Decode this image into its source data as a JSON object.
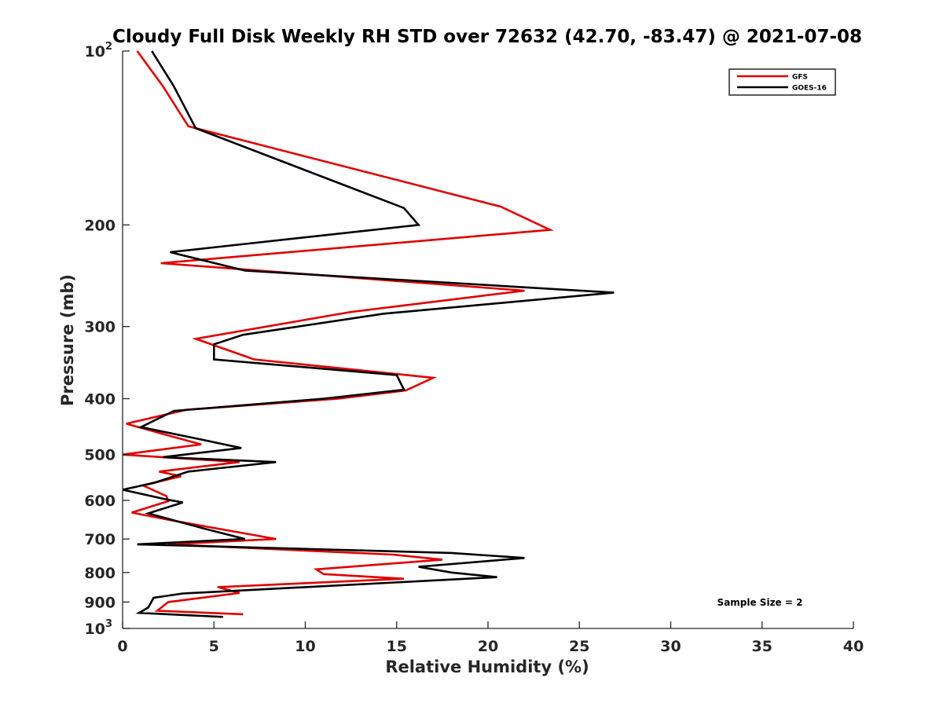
{
  "chart_data": {
    "type": "line",
    "title": "Cloudy Full Disk Weekly RH STD over 72632 (42.70, -83.47) @ 2021-07-08",
    "xlabel": "Relative Humidity (%)",
    "ylabel": "Pressure (mb)",
    "xlim": [
      0,
      40
    ],
    "ylim": [
      100,
      1000
    ],
    "y_scale": "log",
    "y_reversed": true,
    "x_ticks": [
      "0",
      "5",
      "10",
      "15",
      "20",
      "25",
      "30",
      "35",
      "40"
    ],
    "y_ticks": [
      {
        "value": 100,
        "base": "10",
        "exp": "2"
      },
      {
        "value": 200,
        "label": "200"
      },
      {
        "value": 300,
        "label": "300"
      },
      {
        "value": 400,
        "label": "400"
      },
      {
        "value": 500,
        "label": "500"
      },
      {
        "value": 600,
        "label": "600"
      },
      {
        "value": 700,
        "label": "700"
      },
      {
        "value": 800,
        "label": "800"
      },
      {
        "value": 900,
        "label": "900"
      },
      {
        "value": 1000,
        "base": "10",
        "exp": "3"
      }
    ],
    "legend_position": "top-right",
    "annotation": "Sample Size = 2",
    "series": [
      {
        "name": "GFS",
        "color": "#e00000",
        "points": [
          [
            0.8,
            100
          ],
          [
            2.2,
            115
          ],
          [
            3.6,
            135
          ],
          [
            20.7,
            186
          ],
          [
            23.4,
            204
          ],
          [
            2.1,
            233
          ],
          [
            22.0,
            260
          ],
          [
            12.5,
            283
          ],
          [
            4.0,
            315
          ],
          [
            7.2,
            342
          ],
          [
            17.0,
            368
          ],
          [
            15.5,
            387
          ],
          [
            11.8,
            400
          ],
          [
            3.5,
            418
          ],
          [
            0.2,
            442
          ],
          [
            2.7,
            465
          ],
          [
            4.3,
            480
          ],
          [
            0.0,
            500
          ],
          [
            6.4,
            515
          ],
          [
            2.0,
            535
          ],
          [
            3.2,
            545
          ],
          [
            1.1,
            565
          ],
          [
            2.4,
            590
          ],
          [
            2.5,
            602
          ],
          [
            0.5,
            630
          ],
          [
            2.7,
            650
          ],
          [
            8.4,
            700
          ],
          [
            2.5,
            715
          ],
          [
            14.8,
            745
          ],
          [
            17.5,
            760
          ],
          [
            10.6,
            790
          ],
          [
            11.0,
            805
          ],
          [
            15.4,
            820
          ],
          [
            5.2,
            848
          ],
          [
            6.4,
            868
          ],
          [
            2.5,
            900
          ],
          [
            1.9,
            932
          ],
          [
            6.6,
            945
          ]
        ]
      },
      {
        "name": "GOES-16",
        "color": "#000000",
        "points": [
          [
            1.6,
            100
          ],
          [
            2.8,
            115
          ],
          [
            4.0,
            136
          ],
          [
            15.4,
            187
          ],
          [
            16.2,
            200
          ],
          [
            2.6,
            223
          ],
          [
            6.7,
            240
          ],
          [
            26.9,
            262
          ],
          [
            14.3,
            285
          ],
          [
            6.6,
            310
          ],
          [
            5.0,
            322
          ],
          [
            5.0,
            342
          ],
          [
            15.0,
            364
          ],
          [
            15.4,
            386
          ],
          [
            11.0,
            400
          ],
          [
            2.8,
            420
          ],
          [
            1.0,
            448
          ],
          [
            4.2,
            470
          ],
          [
            6.5,
            487
          ],
          [
            2.2,
            505
          ],
          [
            8.4,
            515
          ],
          [
            3.6,
            535
          ],
          [
            1.7,
            560
          ],
          [
            0.0,
            575
          ],
          [
            2.3,
            597
          ],
          [
            3.3,
            605
          ],
          [
            1.4,
            632
          ],
          [
            4.5,
            672
          ],
          [
            6.7,
            700
          ],
          [
            0.8,
            715
          ],
          [
            18.0,
            740
          ],
          [
            22.0,
            755
          ],
          [
            16.2,
            782
          ],
          [
            18.0,
            800
          ],
          [
            20.5,
            815
          ],
          [
            3.3,
            870
          ],
          [
            1.7,
            885
          ],
          [
            1.4,
            920
          ],
          [
            0.9,
            940
          ],
          [
            5.5,
            955
          ]
        ]
      }
    ]
  }
}
